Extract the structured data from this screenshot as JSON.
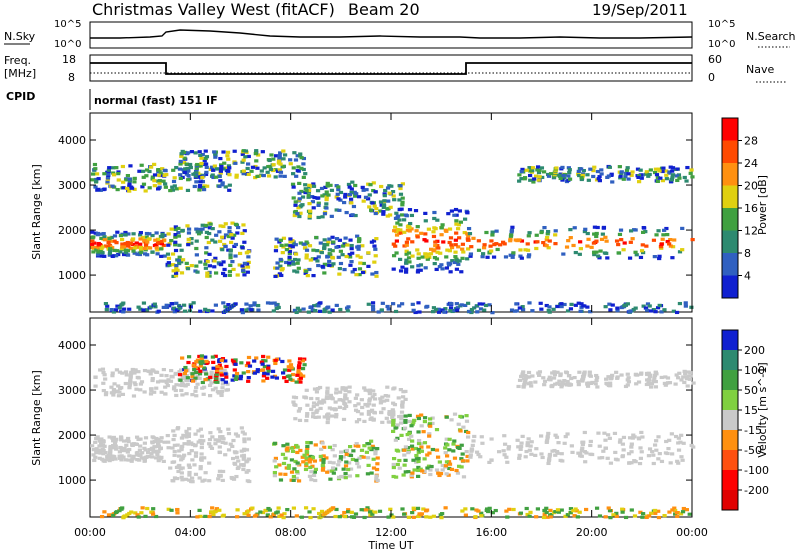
{
  "header": {
    "title": "Christmas Valley West (fitACF)",
    "beam": "Beam 20",
    "date": "19/Sep/2011"
  },
  "noise_panel": {
    "left_label": "N.Sky",
    "left_ticks": [
      "10^5",
      "10^0"
    ],
    "right_ticks": [
      "10^5",
      "10^0"
    ],
    "right_label": "N.Search"
  },
  "freq_panel": {
    "left_label_line1": "Freq.",
    "left_label_line2": "[MHz]",
    "left_ticks": [
      "18",
      "8"
    ],
    "right_ticks": [
      "60",
      "0"
    ],
    "right_label": "Nave",
    "cpid_label": "CPID",
    "cpid_text": "normal (fast) 151 IF"
  },
  "x_axis": {
    "label": "Time UT",
    "ticks": [
      "00:00",
      "04:00",
      "08:00",
      "12:00",
      "16:00",
      "20:00",
      "00:00"
    ]
  },
  "colors": {
    "scale": [
      "#1020d0",
      "#3060c0",
      "#2d8a70",
      "#40a040",
      "#c9c9c9",
      "#ff9010",
      "#f05010",
      "#ff0000"
    ]
  },
  "chart_data": [
    {
      "type": "heatmap",
      "title": "Power",
      "ylabel": "Slant Range [km]",
      "ylim": [
        180,
        4600
      ],
      "yticks": [
        "1000",
        "2000",
        "3000",
        "4000"
      ],
      "colorbar_label": "Power [dB]",
      "colorbar_ticks": [
        "28",
        "24",
        "20",
        "16",
        "12",
        "8",
        "4"
      ],
      "colorbar_colors": [
        "#ff0000",
        "#ff4a00",
        "#ff9010",
        "#e0d010",
        "#40a040",
        "#2d8a70",
        "#3060c0",
        "#1020d0"
      ]
    },
    {
      "type": "heatmap",
      "title": "Velocity",
      "ylabel": "Slant Range [km]",
      "ylim": [
        180,
        4600
      ],
      "yticks": [
        "1000",
        "2000",
        "3000",
        "4000"
      ],
      "colorbar_label": "Velocity [m s^-1]",
      "colorbar_ticks": [
        "200",
        "100",
        "50",
        "15",
        "-15",
        "-50",
        "-100",
        "-200"
      ],
      "colorbar_colors": [
        "#1020d0",
        "#2d8a70",
        "#40a040",
        "#80d040",
        "#c9c9c9",
        "#ff9010",
        "#ff5010",
        "#ff0000",
        "#e00000"
      ]
    }
  ]
}
